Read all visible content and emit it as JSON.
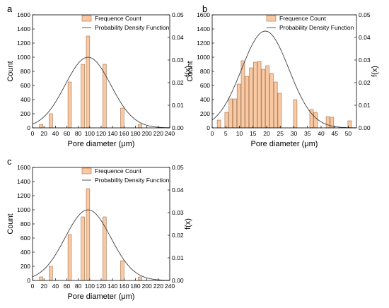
{
  "figure": {
    "legend_bar_label": "Frequence Count",
    "legend_curve_label": "Probability Density Function",
    "colors": {
      "bar_fill": "#f9c9a3",
      "bar_stroke": "#a3704a",
      "curve": "#404040",
      "axis": "#000000"
    }
  },
  "chart_data": [
    {
      "panel": "a",
      "type": "bar",
      "xlabel": "Pore diameter (μm)",
      "ylabel": "Count",
      "y2label": "f(x)",
      "xlim": [
        0,
        240
      ],
      "ylim": [
        0,
        1600
      ],
      "y2lim": [
        0,
        0.05
      ],
      "xticks": [
        0,
        20,
        40,
        60,
        80,
        100,
        120,
        140,
        160,
        180,
        200,
        220,
        240
      ],
      "yticks": [
        0,
        200,
        400,
        600,
        800,
        1000,
        1200,
        1400,
        1600
      ],
      "y2ticks": [
        "0.00",
        "0.01",
        "0.02",
        "0.03",
        "0.04",
        "0.05"
      ],
      "bar_width": 6,
      "bars": [
        {
          "x": 15,
          "y": 50
        },
        {
          "x": 32,
          "y": 200
        },
        {
          "x": 65,
          "y": 650
        },
        {
          "x": 88,
          "y": 900
        },
        {
          "x": 97,
          "y": 1300
        },
        {
          "x": 126,
          "y": 900
        },
        {
          "x": 157,
          "y": 280
        },
        {
          "x": 188,
          "y": 50
        }
      ],
      "pdf": {
        "mean": 97,
        "sd": 40,
        "peak": 1000
      },
      "legend_position": "top"
    },
    {
      "panel": "b",
      "type": "bar",
      "xlabel": "Pore diameter (μm)",
      "ylabel": "Count",
      "y2label": "f(x)",
      "xlim": [
        0,
        53
      ],
      "ylim": [
        0,
        1600
      ],
      "y2lim": [
        0,
        0.05
      ],
      "xticks": [
        0,
        5,
        10,
        15,
        20,
        25,
        30,
        35,
        40,
        45,
        50
      ],
      "yticks": [
        0,
        200,
        400,
        600,
        800,
        1000,
        1200,
        1400,
        1600
      ],
      "y2ticks": [
        "0.00",
        "0.01",
        "0.02",
        "0.03",
        "0.04",
        "0.05"
      ],
      "bar_width": 1.3,
      "bars": [
        {
          "x": 2.5,
          "y": 110
        },
        {
          "x": 5.3,
          "y": 220
        },
        {
          "x": 6.8,
          "y": 410
        },
        {
          "x": 8.3,
          "y": 410
        },
        {
          "x": 9.8,
          "y": 620
        },
        {
          "x": 11.3,
          "y": 950
        },
        {
          "x": 12.8,
          "y": 730
        },
        {
          "x": 14.3,
          "y": 850
        },
        {
          "x": 15.8,
          "y": 930
        },
        {
          "x": 17.3,
          "y": 940
        },
        {
          "x": 18.8,
          "y": 830
        },
        {
          "x": 20.3,
          "y": 880
        },
        {
          "x": 21.8,
          "y": 770
        },
        {
          "x": 23.3,
          "y": 650
        },
        {
          "x": 24.8,
          "y": 490
        },
        {
          "x": 30.5,
          "y": 400
        },
        {
          "x": 36.5,
          "y": 260
        },
        {
          "x": 38,
          "y": 220
        },
        {
          "x": 42.5,
          "y": 160
        },
        {
          "x": 44,
          "y": 150
        },
        {
          "x": 50.5,
          "y": 100
        }
      ],
      "pdf": {
        "mean": 19.5,
        "sd": 8.7,
        "peak": 1370
      },
      "legend_position": "top"
    },
    {
      "panel": "c",
      "type": "bar",
      "xlabel": "Pore diameter (μm)",
      "ylabel": "Count",
      "y2label": "f(x)",
      "xlim": [
        0,
        240
      ],
      "ylim": [
        0,
        1600
      ],
      "y2lim": [
        0,
        0.05
      ],
      "xticks": [
        0,
        20,
        40,
        60,
        80,
        100,
        120,
        140,
        160,
        180,
        200,
        220,
        240
      ],
      "yticks": [
        0,
        200,
        400,
        600,
        800,
        1000,
        1200,
        1400,
        1600
      ],
      "y2ticks": [
        "0.00",
        "0.01",
        "0.02",
        "0.03",
        "0.04",
        "0.05"
      ],
      "bar_width": 6,
      "bars": [
        {
          "x": 15,
          "y": 50
        },
        {
          "x": 32,
          "y": 200
        },
        {
          "x": 65,
          "y": 650
        },
        {
          "x": 88,
          "y": 900
        },
        {
          "x": 97,
          "y": 1300
        },
        {
          "x": 126,
          "y": 900
        },
        {
          "x": 157,
          "y": 280
        },
        {
          "x": 188,
          "y": 50
        }
      ],
      "pdf": {
        "mean": 97,
        "sd": 40,
        "peak": 1000
      },
      "legend_position": "top"
    }
  ]
}
